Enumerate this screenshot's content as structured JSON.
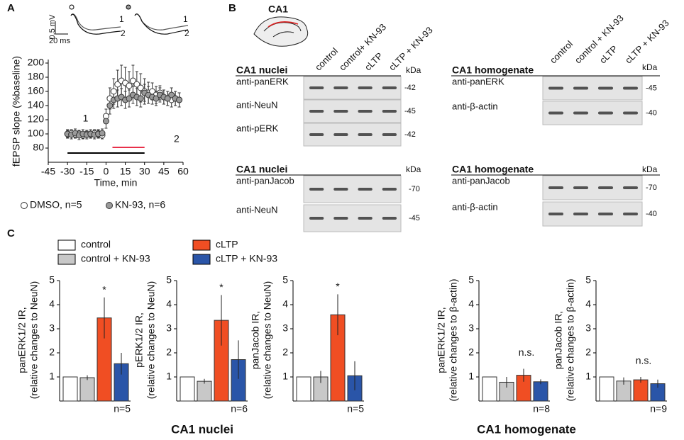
{
  "panels": [
    "A",
    "B",
    "C"
  ],
  "groups": [
    "CA1 nuclei",
    "CA1 homogenate"
  ],
  "insets": {
    "scale_v": "0.5 mV",
    "scale_t": "20 ms",
    "labels": [
      "1",
      "2"
    ]
  },
  "diagram_label": "CA1",
  "blots": [
    {
      "title": "CA1 nuclei",
      "unit": "kDa",
      "lanes": [
        "control",
        "control+ KN-93",
        "cLTP",
        "cLTP + KN-93"
      ],
      "rows": [
        {
          "label": "anti-panERK",
          "kda": "-42"
        },
        {
          "label": "anti-NeuN",
          "kda": "-45"
        },
        {
          "label": "anti-pERK",
          "kda": "-42"
        }
      ]
    },
    {
      "title": "CA1 homogenate",
      "unit": "kDa",
      "lanes": [
        "control",
        "control + KN-93",
        "cLTP",
        "cLTP + KN-93"
      ],
      "rows": [
        {
          "label": "anti-panERK",
          "kda": "-45"
        },
        {
          "label": "anti-β-actin",
          "kda": "-40"
        }
      ]
    },
    {
      "title": "CA1 nuclei",
      "unit": "kDa",
      "rows": [
        {
          "label": "anti-panJacob",
          "kda": "-70"
        },
        {
          "label": "anti-NeuN",
          "kda": "-45"
        }
      ]
    },
    {
      "title": "CA1 homogenate",
      "unit": "kDa",
      "rows": [
        {
          "label": "anti-panJacob",
          "kda": "-70"
        },
        {
          "label": "anti-β-actin",
          "kda": "-40"
        }
      ]
    }
  ],
  "chart_data": [
    {
      "type": "scatter",
      "ylabel": "fEPSP slope (%baseline)",
      "xlabel": "Time, min",
      "xlim": [
        -45,
        60
      ],
      "xticks": [
        -45,
        -30,
        -15,
        0,
        15,
        30,
        45,
        60
      ],
      "ylim": [
        60,
        205
      ],
      "yticks": [
        80,
        100,
        120,
        140,
        160,
        180,
        200
      ],
      "annotations": [
        "1",
        "2"
      ],
      "bars": [
        {
          "start": -30,
          "end": 30,
          "color": "#000000"
        },
        {
          "start": 5,
          "end": 30,
          "color": "#e8304a"
        }
      ],
      "series": [
        {
          "name": "DMSO, n=5",
          "color": "#ffffff",
          "x": [
            -30,
            -27,
            -24,
            -21,
            -18,
            -15,
            -12,
            -9,
            -6,
            -3,
            0,
            3,
            6,
            9,
            12,
            15,
            18,
            21,
            24,
            27,
            30,
            33,
            36,
            39,
            42,
            45,
            48,
            51,
            54,
            57
          ],
          "values": [
            100,
            101,
            99,
            100,
            98,
            100,
            99,
            101,
            100,
            98,
            125,
            150,
            160,
            170,
            175,
            172,
            168,
            175,
            170,
            165,
            160,
            158,
            160,
            155,
            158,
            152,
            150,
            148,
            150,
            148
          ],
          "errors": [
            5,
            5,
            5,
            5,
            5,
            5,
            5,
            5,
            5,
            5,
            10,
            15,
            18,
            20,
            22,
            22,
            20,
            22,
            18,
            20,
            18,
            15,
            12,
            12,
            10,
            10,
            10,
            10,
            10,
            10
          ]
        },
        {
          "name": "KN-93, n=6",
          "color": "#9a9a9a",
          "x": [
            -30,
            -27,
            -24,
            -21,
            -18,
            -15,
            -12,
            -9,
            -6,
            -3,
            0,
            3,
            6,
            9,
            12,
            15,
            18,
            21,
            24,
            27,
            30,
            33,
            36,
            39,
            42,
            45,
            48,
            51,
            54,
            57
          ],
          "values": [
            100,
            99,
            101,
            98,
            100,
            99,
            100,
            99,
            100,
            101,
            118,
            140,
            148,
            150,
            152,
            148,
            150,
            155,
            152,
            150,
            158,
            155,
            152,
            150,
            155,
            152,
            150,
            155,
            150,
            148
          ],
          "errors": [
            6,
            6,
            6,
            6,
            6,
            6,
            6,
            6,
            6,
            6,
            10,
            12,
            12,
            12,
            12,
            12,
            12,
            12,
            12,
            12,
            12,
            12,
            10,
            10,
            10,
            10,
            10,
            10,
            10,
            10
          ]
        }
      ]
    },
    {
      "type": "bar",
      "ylabel": [
        "panERK1/2 IR,",
        "(relative changes to NeuN)"
      ],
      "n": "n=5",
      "annotation": "*",
      "categories": [
        "control",
        "control + KN-93",
        "cLTP",
        "cLTP + KN-93"
      ],
      "colors": [
        "#ffffff",
        "#c8c8c8",
        "#f04e23",
        "#2a55a8"
      ],
      "values": [
        1,
        0.97,
        3.45,
        1.55
      ],
      "errors": [
        0,
        0.1,
        0.85,
        0.45
      ],
      "ylim": [
        0,
        5
      ],
      "yticks": [
        1,
        2,
        3,
        4,
        5
      ]
    },
    {
      "type": "bar",
      "ylabel": [
        "pERK1/2 IR,",
        "(relative changes to NeuN)"
      ],
      "n": "n=6",
      "annotation": "*",
      "categories": [
        "control",
        "control + KN-93",
        "cLTP",
        "cLTP + KN-93"
      ],
      "colors": [
        "#ffffff",
        "#c8c8c8",
        "#f04e23",
        "#2a55a8"
      ],
      "values": [
        1,
        0.82,
        3.35,
        1.72
      ],
      "errors": [
        0,
        0.1,
        1.05,
        0.8
      ],
      "ylim": [
        0,
        5
      ],
      "yticks": [
        1,
        2,
        3,
        4,
        5
      ]
    },
    {
      "type": "bar",
      "ylabel": [
        "panJacob IR,",
        "(relative changes to NeuN)"
      ],
      "n": "n=5",
      "annotation": "*",
      "categories": [
        "control",
        "control + KN-93",
        "cLTP",
        "cLTP + KN-93"
      ],
      "colors": [
        "#ffffff",
        "#c8c8c8",
        "#f04e23",
        "#2a55a8"
      ],
      "values": [
        1,
        1.0,
        3.58,
        1.05
      ],
      "errors": [
        0,
        0.25,
        0.85,
        0.6
      ],
      "ylim": [
        0,
        5
      ],
      "yticks": [
        1,
        2,
        3,
        4,
        5
      ]
    },
    {
      "type": "bar",
      "ylabel": [
        "panERK1/2 IR,",
        "(relative changes to β-actin)"
      ],
      "n": "n=8",
      "annotation": "n.s.",
      "categories": [
        "control",
        "control + KN-93",
        "cLTP",
        "cLTP + KN-93"
      ],
      "colors": [
        "#ffffff",
        "#c8c8c8",
        "#f04e23",
        "#2a55a8"
      ],
      "values": [
        1,
        0.78,
        1.07,
        0.8
      ],
      "errors": [
        0,
        0.22,
        0.27,
        0.1
      ],
      "ylim": [
        0,
        5
      ],
      "yticks": [
        1,
        2,
        3,
        4,
        5
      ]
    },
    {
      "type": "bar",
      "ylabel": [
        "panJacob IR,",
        "(relative changes to β-actin)"
      ],
      "n": "n=9",
      "annotation": "n.s.",
      "categories": [
        "control",
        "control + KN-93",
        "cLTP",
        "cLTP + KN-93"
      ],
      "colors": [
        "#ffffff",
        "#c8c8c8",
        "#f04e23",
        "#2a55a8"
      ],
      "values": [
        1,
        0.83,
        0.88,
        0.72
      ],
      "errors": [
        0,
        0.15,
        0.12,
        0.17
      ],
      "ylim": [
        0,
        5
      ],
      "yticks": [
        1,
        2,
        3,
        4,
        5
      ]
    }
  ]
}
